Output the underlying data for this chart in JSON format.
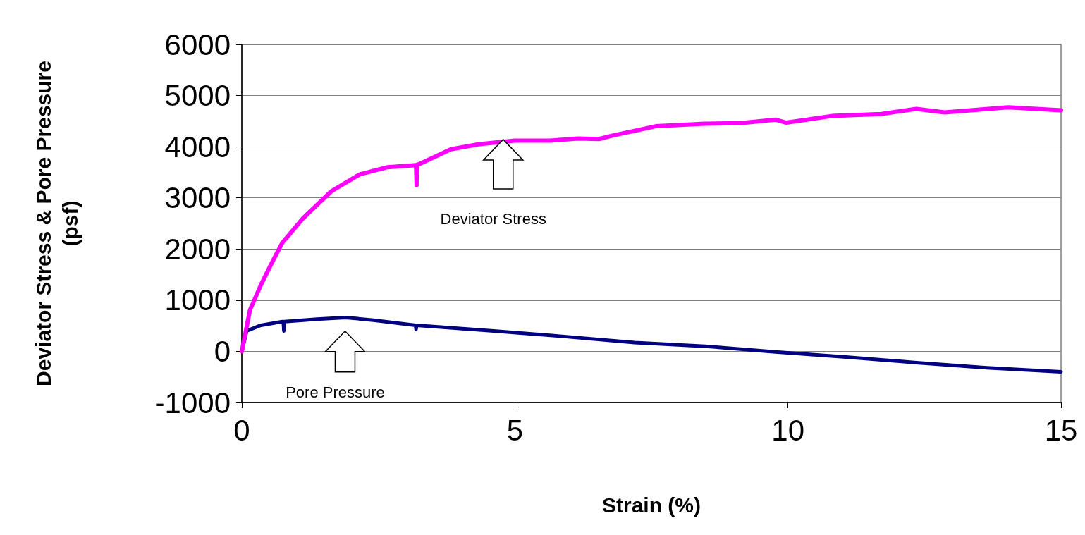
{
  "chart_data": {
    "type": "line",
    "xlabel": "Strain (%)",
    "ylabel": "Deviator Stress & Pore Pressure (psf)",
    "xlim": [
      0,
      15
    ],
    "xticks": [
      0,
      5,
      10,
      15
    ],
    "ylim": [
      -1000,
      6000
    ],
    "yticks": [
      -1000,
      0,
      1000,
      2000,
      3000,
      4000,
      5000,
      6000
    ],
    "grid": "y",
    "marker": "none",
    "line_style": "solid",
    "series": [
      {
        "color": "#ff00ff",
        "x": [
          0,
          0.15,
          0.35,
          0.54,
          0.74,
          1.12,
          1.64,
          2.16,
          2.67,
          3.19,
          3.2,
          3.21,
          3.27,
          3.83,
          4.35,
          5.0,
          5.64,
          6.16,
          6.54,
          6.8,
          7.58,
          8.48,
          9.13,
          9.77,
          9.97,
          10.8,
          11.71,
          12.35,
          12.87,
          14.03,
          15
        ],
        "values": [
          0,
          810,
          1300,
          1710,
          2120,
          2600,
          3130,
          3460,
          3600,
          3640,
          3250,
          3650,
          3670,
          3950,
          4050,
          4120,
          4120,
          4160,
          4150,
          4220,
          4400,
          4450,
          4460,
          4530,
          4470,
          4600,
          4640,
          4740,
          4670,
          4770,
          4710
        ]
      },
      {
        "color": "#000080",
        "x": [
          0,
          0.09,
          0.35,
          0.74,
          0.76,
          0.77,
          0.78,
          1.38,
          1.9,
          2.41,
          3.18,
          3.19,
          3.2,
          4.61,
          5.9,
          7.19,
          8.48,
          9.77,
          11.06,
          12.35,
          13.64,
          15
        ],
        "values": [
          0,
          400,
          510,
          580,
          580,
          400,
          580,
          630,
          660,
          610,
          510,
          430,
          510,
          400,
          290,
          170,
          100,
          -10,
          -110,
          -220,
          -320,
          -400
        ]
      }
    ],
    "annotations": [
      "Deviator Stress",
      "Pore Pressure"
    ]
  }
}
